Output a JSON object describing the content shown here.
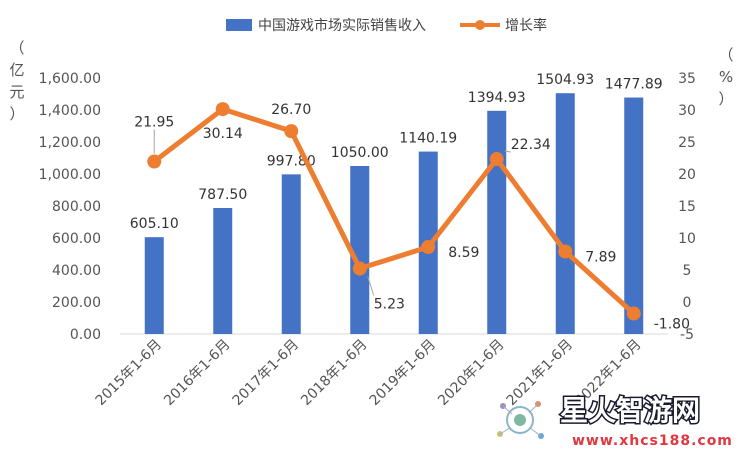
{
  "chart_data": {
    "type": "bar",
    "categories": [
      "2015年1-6月",
      "2016年1-6月",
      "2017年1-6月",
      "2018年1-6月",
      "2019年1-6月",
      "2020年1-6月",
      "2021年1-6月",
      "2022年1-6月"
    ],
    "series": [
      {
        "name": "中国游戏市场实际销售收入",
        "type": "bar",
        "axis": "left",
        "color": "#4472C4",
        "values": [
          605.1,
          787.5,
          997.8,
          1050.0,
          1140.19,
          1394.93,
          1504.93,
          1477.89
        ],
        "labels": [
          "605.10",
          "787.50",
          "997.80",
          "1050.00",
          "1140.19",
          "1394.93",
          "1504.93",
          "1477.89"
        ]
      },
      {
        "name": "增长率",
        "type": "line",
        "axis": "right",
        "color": "#ED7D31",
        "values": [
          21.95,
          30.14,
          26.7,
          5.23,
          8.59,
          22.34,
          7.89,
          -1.8
        ],
        "labels": [
          "21.95",
          "30.14",
          "26.70",
          "5.23",
          "8.59",
          "22.34",
          "7.89",
          "-1.80"
        ]
      }
    ],
    "y_left": {
      "unit_label": [
        "（",
        "亿",
        "元",
        "）"
      ],
      "ylim": [
        0,
        1600
      ],
      "ticks": [
        0,
        200,
        400,
        600,
        800,
        1000,
        1200,
        1400,
        1600
      ],
      "tick_labels": [
        "0.00",
        "200.00",
        "400.00",
        "600.00",
        "800.00",
        "1,000.00",
        "1,200.00",
        "1,400.00",
        "1,600.00"
      ]
    },
    "y_right": {
      "unit_label": [
        "（",
        "%",
        "）"
      ],
      "ylim": [
        -5,
        35
      ],
      "ticks": [
        -5,
        0,
        5,
        10,
        15,
        20,
        25,
        30,
        35
      ],
      "tick_labels": [
        "-5",
        "0",
        "5",
        "10",
        "15",
        "20",
        "25",
        "30",
        "35"
      ]
    },
    "legend_position": "top",
    "grid": false
  },
  "watermark": {
    "name": "星火智游网",
    "url": "www.xhcs188.com"
  }
}
